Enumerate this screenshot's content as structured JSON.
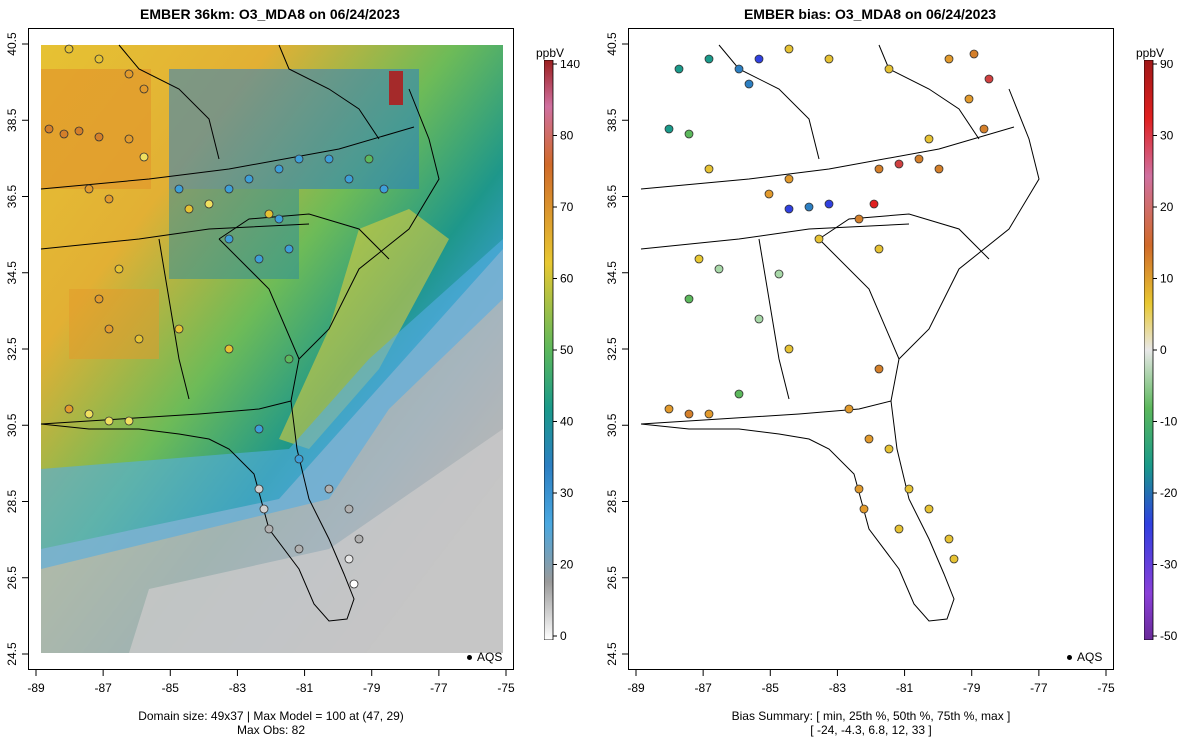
{
  "left": {
    "title": "EMBER 36km: O3_MDA8 on 06/24/2023",
    "footer_line1": "Domain size: 49x37 | Max Model = 100 at (47, 29)",
    "footer_line2": "Max Obs: 82",
    "colorbar": {
      "unit": "ppbV",
      "ticks": [
        "140",
        "80",
        "70",
        "60",
        "50",
        "40",
        "30",
        "20",
        "0"
      ]
    },
    "legend_label": "AQS"
  },
  "right": {
    "title": "EMBER bias: O3_MDA8 on 06/24/2023",
    "footer_line1": "Bias Summary: [ min, 25th %, 50th %, 75th %, max ]",
    "footer_line2": "[ -24,   -4.3,   6.8,   12,   33 ]",
    "colorbar": {
      "unit": "ppbV",
      "ticks": [
        "90",
        "30",
        "20",
        "10",
        "0",
        "-10",
        "-20",
        "-30",
        "-50"
      ]
    },
    "legend_label": "AQS"
  },
  "axes": {
    "x_ticks": [
      "-89",
      "-87",
      "-85",
      "-83",
      "-81",
      "-79",
      "-77",
      "-75"
    ],
    "y_ticks": [
      "40.5",
      "38.5",
      "36.5",
      "34.5",
      "32.5",
      "30.5",
      "28.5",
      "26.5",
      "24.5"
    ]
  },
  "colors": {
    "ocean_gray": "#b4b4b4",
    "light_blue": "#4aa8e0",
    "teal": "#1a9a8a",
    "green": "#5cb85c",
    "yellow": "#e8c832",
    "orange": "#e49a2a",
    "dark_red": "#a02020"
  }
}
